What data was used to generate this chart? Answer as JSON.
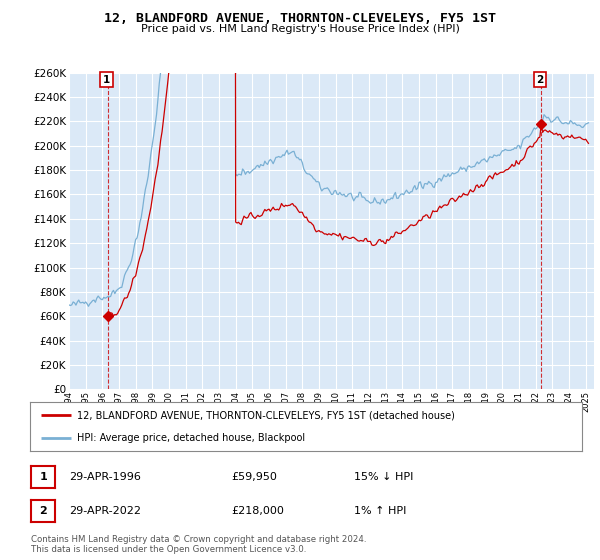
{
  "title": "12, BLANDFORD AVENUE, THORNTON-CLEVELEYS, FY5 1ST",
  "subtitle": "Price paid vs. HM Land Registry's House Price Index (HPI)",
  "legend_line1": "12, BLANDFORD AVENUE, THORNTON-CLEVELEYS, FY5 1ST (detached house)",
  "legend_line2": "HPI: Average price, detached house, Blackpool",
  "annotation1_label": "1",
  "annotation1_date": "29-APR-1996",
  "annotation1_price": "£59,950",
  "annotation1_hpi": "15% ↓ HPI",
  "annotation2_label": "2",
  "annotation2_date": "29-APR-2022",
  "annotation2_price": "£218,000",
  "annotation2_hpi": "1% ↑ HPI",
  "footnote": "Contains HM Land Registry data © Crown copyright and database right 2024.\nThis data is licensed under the Open Government Licence v3.0.",
  "ylim": [
    0,
    260000
  ],
  "yticks": [
    0,
    20000,
    40000,
    60000,
    80000,
    100000,
    120000,
    140000,
    160000,
    180000,
    200000,
    220000,
    240000,
    260000
  ],
  "xlim_start": 1994.0,
  "xlim_end": 2025.5,
  "red_color": "#cc0000",
  "blue_color": "#7ab0d4",
  "bg_color": "#dbe9f7",
  "grid_color": "#ffffff",
  "point1_x": 1996.33,
  "point1_y": 59950,
  "point2_x": 2022.33,
  "point2_y": 218000,
  "fig_bg": "#f0f0f0"
}
